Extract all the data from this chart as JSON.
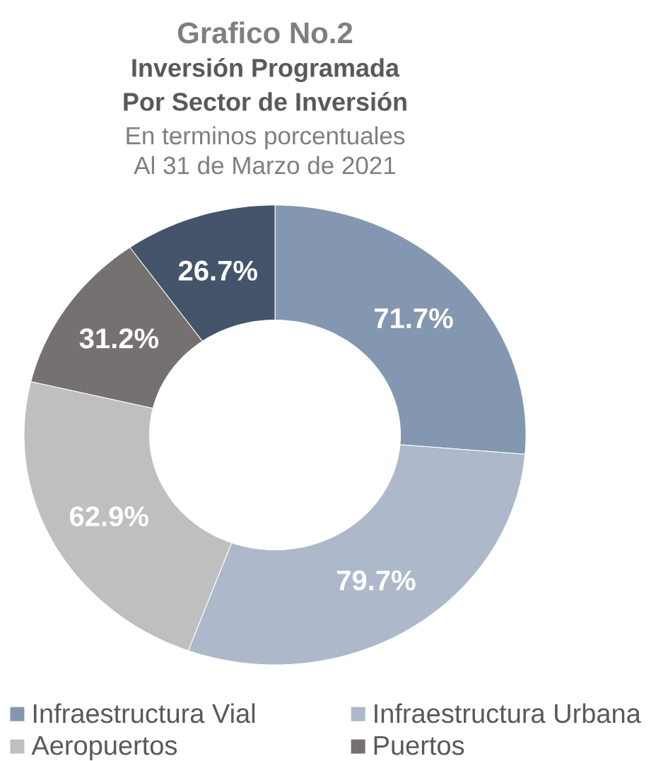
{
  "chart_data": {
    "type": "donut",
    "title": "Grafico No.2",
    "subtitle": "Inversión Programada Por Sector de Inversión",
    "annotations": [
      "En terminos porcentuales",
      "Al 31 de Marzo de 2021"
    ],
    "categories": [
      "Infraestructura Vial",
      "Infraestructura Urbana",
      "Aeropuertos",
      "Puertos",
      null
    ],
    "values": [
      71.7,
      79.7,
      62.9,
      31.2,
      26.7
    ],
    "value_labels": [
      "71.7%",
      "79.7%",
      "62.9%",
      "31.2%",
      "26.7%"
    ],
    "colors": [
      "#8497b0",
      "#adb9ca",
      "#bfbfbf",
      "#767171",
      "#44546a"
    ],
    "legend": "bottom"
  }
}
